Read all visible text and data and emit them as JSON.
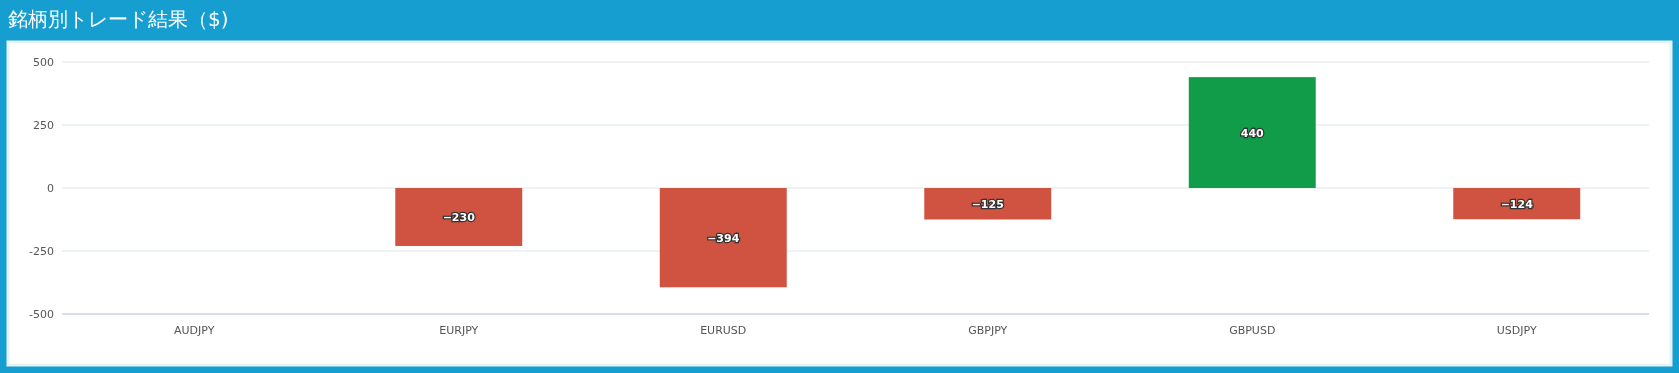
{
  "chart_data": {
    "type": "bar",
    "title": "銘柄別トレード結果（$)",
    "categories": [
      "AUDJPY",
      "EURJPY",
      "EURUSD",
      "GBPJPY",
      "GBPUSD",
      "USDJPY"
    ],
    "values": [
      null,
      -230,
      -394,
      -125,
      440,
      -124
    ],
    "colors": [
      null,
      "#cf5340",
      "#cf5340",
      "#cf5340",
      "#119c4a",
      "#cf5340"
    ],
    "value_labels": [
      null,
      "−230",
      "−394",
      "−125",
      "440",
      "−124"
    ],
    "ylim": [
      -500,
      500
    ],
    "yticks": [
      500,
      250,
      0,
      -250,
      -500
    ],
    "grid": "y"
  }
}
